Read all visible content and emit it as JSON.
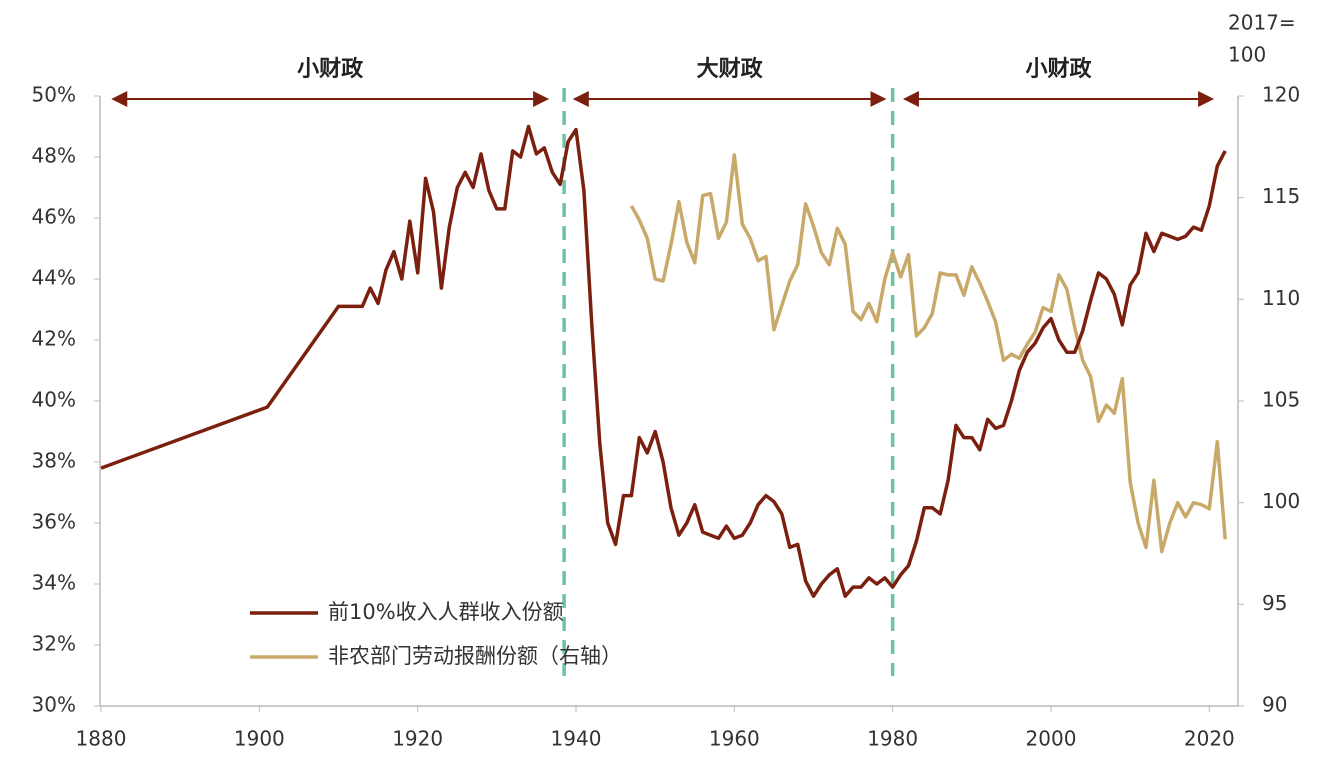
{
  "chart_data": {
    "type": "line",
    "y2_label": [
      "2017=",
      "100"
    ],
    "xlim": [
      1880,
      2024
    ],
    "xticks": [
      1880,
      1900,
      1920,
      1940,
      1960,
      1980,
      2000,
      2020
    ],
    "ylim": [
      30,
      50
    ],
    "yticks": [
      {
        "value": 30,
        "label": "30%"
      },
      {
        "value": 32,
        "label": "32%"
      },
      {
        "value": 34,
        "label": "34%"
      },
      {
        "value": 36,
        "label": "36%"
      },
      {
        "value": 38,
        "label": "38%"
      },
      {
        "value": 40,
        "label": "40%"
      },
      {
        "value": 42,
        "label": "42%"
      },
      {
        "value": 44,
        "label": "44%"
      },
      {
        "value": 46,
        "label": "46%"
      },
      {
        "value": 48,
        "label": "48%"
      },
      {
        "value": 50,
        "label": "50%"
      }
    ],
    "y2lim": [
      90,
      120
    ],
    "y2ticks": [
      90,
      95,
      100,
      105,
      110,
      115,
      120
    ],
    "legend": "lower left",
    "dividers": [
      1938.5,
      1980
    ],
    "periods": [
      {
        "label": "小财政",
        "start": 1881.5,
        "end": 1936.4
      },
      {
        "label": "大财政",
        "start": 1939.8,
        "end": 1979
      },
      {
        "label": "小财政",
        "start": 1981.5,
        "end": 2020.4
      }
    ],
    "series": [
      {
        "name": "前10%收入人群收入份额",
        "color": "#7b1f0e",
        "x": [
          1880,
          1901,
          1910,
          1913,
          1914,
          1915,
          1916,
          1917,
          1918,
          1919,
          1920,
          1921,
          1922,
          1923,
          1924,
          1925,
          1926,
          1927,
          1928,
          1929,
          1930,
          1931,
          1932,
          1933,
          1934,
          1935,
          1936,
          1937,
          1938,
          1939,
          1940,
          1941,
          1942,
          1943,
          1944,
          1945,
          1946,
          1947,
          1948,
          1949,
          1950,
          1951,
          1952,
          1953,
          1954,
          1955,
          1956,
          1957,
          1958,
          1959,
          1960,
          1961,
          1962,
          1963,
          1964,
          1965,
          1966,
          1967,
          1968,
          1969,
          1970,
          1971,
          1972,
          1973,
          1974,
          1975,
          1976,
          1977,
          1978,
          1979,
          1980,
          1981,
          1982,
          1983,
          1984,
          1985,
          1986,
          1987,
          1988,
          1989,
          1990,
          1991,
          1992,
          1993,
          1994,
          1995,
          1996,
          1997,
          1998,
          1999,
          2000,
          2001,
          2002,
          2003,
          2004,
          2005,
          2006,
          2007,
          2008,
          2009,
          2010,
          2011,
          2012,
          2013,
          2014,
          2015,
          2016,
          2017,
          2018,
          2019,
          2020,
          2021,
          2022
        ],
        "values": [
          37.8,
          39.8,
          43.1,
          43.1,
          43.7,
          43.2,
          44.3,
          44.9,
          44.0,
          45.9,
          44.2,
          47.3,
          46.2,
          43.7,
          45.7,
          47.0,
          47.5,
          47.0,
          48.1,
          46.9,
          46.3,
          46.3,
          48.2,
          48.0,
          49.0,
          48.1,
          48.3,
          47.5,
          47.1,
          48.5,
          48.9,
          46.9,
          42.5,
          38.6,
          36.0,
          35.3,
          36.9,
          36.9,
          38.8,
          38.3,
          39.0,
          38.0,
          36.5,
          35.6,
          36.0,
          36.6,
          35.7,
          35.6,
          35.5,
          35.9,
          35.5,
          35.6,
          36.0,
          36.6,
          36.9,
          36.7,
          36.3,
          35.2,
          35.3,
          34.1,
          33.6,
          34.0,
          34.3,
          34.5,
          33.6,
          33.9,
          33.9,
          34.2,
          34.0,
          34.2,
          33.9,
          34.3,
          34.6,
          35.4,
          36.5,
          36.5,
          36.3,
          37.4,
          39.2,
          38.8,
          38.8,
          38.4,
          39.4,
          39.1,
          39.2,
          40.0,
          41.0,
          41.6,
          41.9,
          42.4,
          42.7,
          42.0,
          41.6,
          41.6,
          42.3,
          43.3,
          44.2,
          44.0,
          43.5,
          42.5,
          43.8,
          44.2,
          45.5,
          44.9,
          45.5,
          45.4,
          45.3,
          45.4,
          45.7,
          45.6,
          46.4,
          47.7,
          48.2
        ]
      },
      {
        "name": "非农部门劳动报酬份额（右轴）",
        "color": "#c8a96a",
        "axis": "y2",
        "x": [
          1947,
          1948,
          1949,
          1950,
          1951,
          1952,
          1953,
          1954,
          1955,
          1956,
          1957,
          1958,
          1959,
          1960,
          1961,
          1962,
          1963,
          1964,
          1965,
          1966,
          1967,
          1968,
          1969,
          1970,
          1971,
          1972,
          1973,
          1974,
          1975,
          1976,
          1977,
          1978,
          1979,
          1980,
          1981,
          1982,
          1983,
          1984,
          1985,
          1986,
          1987,
          1988,
          1989,
          1990,
          1991,
          1992,
          1993,
          1994,
          1995,
          1996,
          1997,
          1998,
          1999,
          2000,
          2001,
          2002,
          2003,
          2004,
          2005,
          2006,
          2007,
          2008,
          2009,
          2010,
          2011,
          2012,
          2013,
          2014,
          2015,
          2016,
          2017,
          2018,
          2019,
          2020,
          2021,
          2022
        ],
        "values": [
          114.6,
          113.9,
          113.0,
          111.0,
          110.9,
          112.7,
          114.8,
          112.8,
          111.8,
          115.1,
          115.2,
          113.0,
          113.8,
          117.1,
          113.7,
          113.0,
          111.9,
          112.1,
          108.5,
          109.7,
          110.9,
          111.7,
          114.7,
          113.6,
          112.3,
          111.7,
          113.5,
          112.7,
          109.4,
          109.0,
          109.8,
          108.9,
          111.0,
          112.3,
          111.1,
          112.2,
          108.2,
          108.6,
          109.3,
          111.3,
          111.2,
          111.2,
          110.2,
          111.6,
          110.8,
          109.9,
          108.9,
          107.0,
          107.3,
          107.1,
          107.8,
          108.4,
          109.6,
          109.4,
          111.2,
          110.5,
          108.6,
          107.0,
          106.2,
          104.0,
          104.8,
          104.4,
          106.1,
          101.0,
          99.0,
          97.8,
          101.1,
          97.6,
          99.0,
          100.0,
          99.3,
          100.0,
          99.9,
          99.7,
          103.0,
          98.2
        ]
      }
    ]
  }
}
